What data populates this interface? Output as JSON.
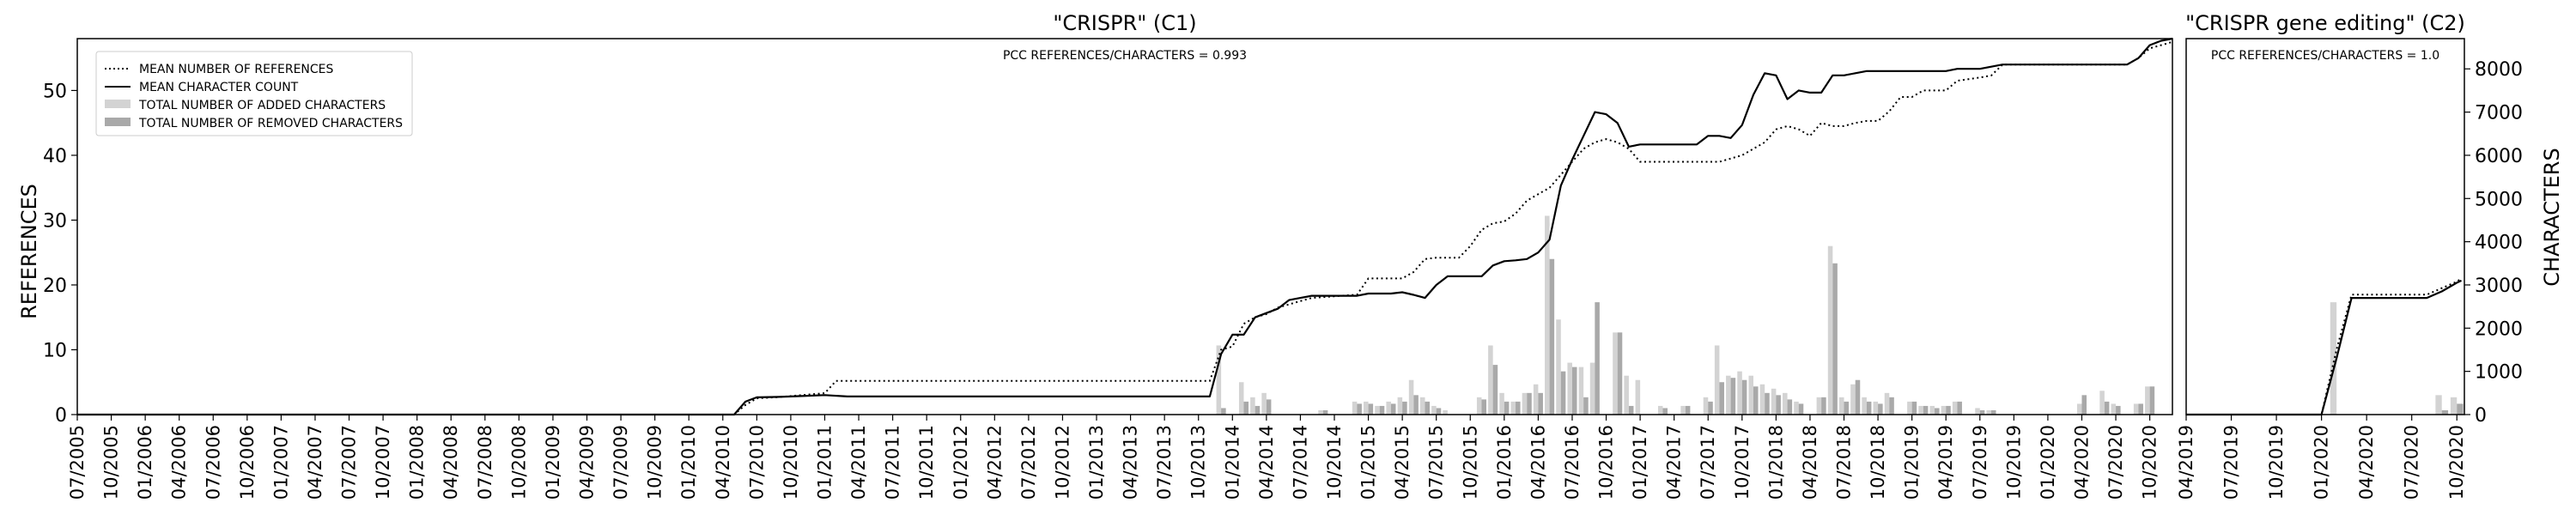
{
  "chart_data": [
    {
      "type": "line",
      "title": "\"CRISPR\" (C1)",
      "annotation": "PCC REFERENCES/CHARACTERS = 0.993",
      "ylabel_left": "REFERENCES",
      "ylabel_right": "",
      "ylim_left": [
        0,
        58
      ],
      "ylim_right": [
        0,
        8700
      ],
      "yticks_left": [
        "0",
        "10",
        "20",
        "30",
        "40",
        "50"
      ],
      "yticks_right": [],
      "xlim": [
        0,
        185
      ],
      "legend_position": "top-left",
      "legend": [
        {
          "label": "MEAN NUMBER OF REFERENCES",
          "style": "dotted"
        },
        {
          "label": "MEAN CHARACTER COUNT",
          "style": "solid"
        },
        {
          "label": "TOTAL NUMBER OF ADDED CHARACTERS",
          "style": "bar-light"
        },
        {
          "label": "TOTAL NUMBER OF REMOVED CHARACTERS",
          "style": "bar-dark"
        }
      ],
      "xtick_labels": [
        "07/2005",
        "10/2005",
        "01/2006",
        "04/2006",
        "07/2006",
        "10/2006",
        "01/2007",
        "04/2007",
        "07/2007",
        "10/2007",
        "01/2008",
        "04/2008",
        "07/2008",
        "10/2008",
        "01/2009",
        "04/2009",
        "07/2009",
        "10/2009",
        "01/2010",
        "04/2010",
        "07/2010",
        "10/2010",
        "01/2011",
        "04/2011",
        "07/2011",
        "10/2011",
        "01/2012",
        "04/2012",
        "07/2012",
        "10/2012",
        "01/2013",
        "04/2013",
        "07/2013",
        "10/2013",
        "01/2014",
        "04/2014",
        "07/2014",
        "10/2014",
        "01/2015",
        "04/2015",
        "07/2015",
        "10/2015",
        "01/2016",
        "04/2016",
        "07/2016",
        "10/2016",
        "01/2017",
        "04/2017",
        "07/2017",
        "10/2017",
        "01/2018",
        "04/2018",
        "07/2018",
        "10/2018",
        "01/2019",
        "04/2019",
        "07/2019",
        "10/2019",
        "01/2020",
        "04/2020",
        "07/2020",
        "10/2020"
      ],
      "xtick_positions": [
        0,
        3,
        6,
        9,
        12,
        15,
        18,
        21,
        24,
        27,
        30,
        33,
        36,
        39,
        42,
        45,
        48,
        51,
        54,
        57,
        60,
        63,
        66,
        69,
        72,
        75,
        78,
        81,
        84,
        87,
        90,
        93,
        96,
        99,
        102,
        105,
        108,
        111,
        114,
        117,
        120,
        123,
        126,
        129,
        132,
        135,
        138,
        141,
        144,
        147,
        150,
        153,
        156,
        159,
        162,
        165,
        168,
        171,
        174,
        177,
        180,
        183
      ],
      "references": [
        [
          0,
          0
        ],
        [
          58,
          0
        ],
        [
          59,
          1.5
        ],
        [
          60,
          2.5
        ],
        [
          62,
          2.7
        ],
        [
          64,
          3
        ],
        [
          66,
          3.3
        ],
        [
          67,
          5.2
        ],
        [
          100,
          5.2
        ],
        [
          101,
          10
        ],
        [
          102,
          10.5
        ],
        [
          103,
          14
        ],
        [
          104,
          15
        ],
        [
          105,
          15.5
        ],
        [
          106,
          16.5
        ],
        [
          107,
          17
        ],
        [
          108,
          17.5
        ],
        [
          109,
          18
        ],
        [
          113,
          18.5
        ],
        [
          114,
          21
        ],
        [
          115,
          21
        ],
        [
          117,
          21
        ],
        [
          118,
          22
        ],
        [
          119,
          24
        ],
        [
          120,
          24.2
        ],
        [
          122,
          24.2
        ],
        [
          123,
          26
        ],
        [
          124,
          28.5
        ],
        [
          125,
          29.5
        ],
        [
          126,
          29.8
        ],
        [
          127,
          31
        ],
        [
          128,
          33
        ],
        [
          129,
          34
        ],
        [
          130,
          35
        ],
        [
          131,
          37
        ],
        [
          132,
          39
        ],
        [
          133,
          41
        ],
        [
          134,
          42
        ],
        [
          135,
          42.5
        ],
        [
          136,
          42
        ],
        [
          137,
          41
        ],
        [
          138,
          39
        ],
        [
          139,
          39
        ],
        [
          145,
          39
        ],
        [
          146,
          39.5
        ],
        [
          147,
          40
        ],
        [
          148,
          41
        ],
        [
          149,
          42
        ],
        [
          150,
          44
        ],
        [
          151,
          44.5
        ],
        [
          152,
          44
        ],
        [
          153,
          43
        ],
        [
          154,
          45
        ],
        [
          155,
          44.5
        ],
        [
          156,
          44.5
        ],
        [
          157,
          45
        ],
        [
          158,
          45.3
        ],
        [
          159,
          45.3
        ],
        [
          160,
          46.8
        ],
        [
          161,
          49
        ],
        [
          162,
          49
        ],
        [
          163,
          50
        ],
        [
          165,
          50
        ],
        [
          166,
          51.5
        ],
        [
          168,
          52
        ],
        [
          169,
          52.3
        ],
        [
          170,
          54
        ],
        [
          180,
          54
        ],
        [
          181,
          54
        ],
        [
          182,
          55
        ],
        [
          183,
          56.5
        ],
        [
          184,
          57
        ],
        [
          185,
          57.5
        ]
      ],
      "characters": [
        [
          0,
          0
        ],
        [
          58,
          0
        ],
        [
          59,
          300
        ],
        [
          60,
          400
        ],
        [
          62,
          410
        ],
        [
          64,
          430
        ],
        [
          66,
          450
        ],
        [
          68,
          420
        ],
        [
          100,
          420
        ],
        [
          101,
          1400
        ],
        [
          102,
          1850
        ],
        [
          103,
          1850
        ],
        [
          104,
          2250
        ],
        [
          105,
          2350
        ],
        [
          106,
          2450
        ],
        [
          107,
          2650
        ],
        [
          108,
          2700
        ],
        [
          109,
          2750
        ],
        [
          113,
          2750
        ],
        [
          114,
          2800
        ],
        [
          116,
          2800
        ],
        [
          117,
          2830
        ],
        [
          118,
          2770
        ],
        [
          119,
          2700
        ],
        [
          120,
          3000
        ],
        [
          121,
          3200
        ],
        [
          122,
          3200
        ],
        [
          123,
          3200
        ],
        [
          124,
          3200
        ],
        [
          125,
          3450
        ],
        [
          126,
          3550
        ],
        [
          127,
          3570
        ],
        [
          128,
          3600
        ],
        [
          129,
          3750
        ],
        [
          130,
          4050
        ],
        [
          131,
          5300
        ],
        [
          132,
          5900
        ],
        [
          133,
          6450
        ],
        [
          134,
          7000
        ],
        [
          135,
          6950
        ],
        [
          136,
          6750
        ],
        [
          137,
          6200
        ],
        [
          138,
          6250
        ],
        [
          143,
          6250
        ],
        [
          144,
          6450
        ],
        [
          145,
          6450
        ],
        [
          146,
          6400
        ],
        [
          147,
          6700
        ],
        [
          148,
          7400
        ],
        [
          149,
          7900
        ],
        [
          150,
          7850
        ],
        [
          151,
          7300
        ],
        [
          152,
          7500
        ],
        [
          153,
          7450
        ],
        [
          154,
          7450
        ],
        [
          155,
          7850
        ],
        [
          156,
          7850
        ],
        [
          157,
          7900
        ],
        [
          158,
          7950
        ],
        [
          159,
          7950
        ],
        [
          165,
          7950
        ],
        [
          166,
          8000
        ],
        [
          168,
          8000
        ],
        [
          169,
          8050
        ],
        [
          170,
          8100
        ],
        [
          180,
          8100
        ],
        [
          181,
          8100
        ],
        [
          182,
          8250
        ],
        [
          183,
          8550
        ],
        [
          184,
          8650
        ],
        [
          185,
          8700
        ]
      ],
      "added": [
        [
          101,
          1600
        ],
        [
          103,
          750
        ],
        [
          104,
          400
        ],
        [
          105,
          500
        ],
        [
          110,
          100
        ],
        [
          113,
          300
        ],
        [
          114,
          300
        ],
        [
          115,
          200
        ],
        [
          116,
          300
        ],
        [
          117,
          400
        ],
        [
          118,
          800
        ],
        [
          119,
          400
        ],
        [
          120,
          200
        ],
        [
          121,
          100
        ],
        [
          124,
          400
        ],
        [
          125,
          1600
        ],
        [
          126,
          500
        ],
        [
          127,
          300
        ],
        [
          128,
          500
        ],
        [
          129,
          700
        ],
        [
          130,
          4600
        ],
        [
          131,
          2200
        ],
        [
          132,
          1200
        ],
        [
          133,
          1100
        ],
        [
          134,
          1200
        ],
        [
          136,
          1900
        ],
        [
          137,
          900
        ],
        [
          138,
          800
        ],
        [
          140,
          200
        ],
        [
          142,
          200
        ],
        [
          144,
          400
        ],
        [
          145,
          1600
        ],
        [
          146,
          900
        ],
        [
          147,
          1000
        ],
        [
          148,
          900
        ],
        [
          149,
          700
        ],
        [
          150,
          600
        ],
        [
          151,
          500
        ],
        [
          152,
          300
        ],
        [
          154,
          400
        ],
        [
          155,
          3900
        ],
        [
          156,
          400
        ],
        [
          157,
          700
        ],
        [
          158,
          400
        ],
        [
          159,
          300
        ],
        [
          160,
          500
        ],
        [
          162,
          300
        ],
        [
          163,
          200
        ],
        [
          164,
          200
        ],
        [
          165,
          200
        ],
        [
          166,
          300
        ],
        [
          168,
          150
        ],
        [
          169,
          100
        ],
        [
          177,
          250
        ],
        [
          179,
          550
        ],
        [
          180,
          250
        ],
        [
          182,
          250
        ],
        [
          183,
          650
        ]
      ],
      "removed": [
        [
          101,
          150
        ],
        [
          103,
          300
        ],
        [
          104,
          200
        ],
        [
          105,
          350
        ],
        [
          110,
          100
        ],
        [
          113,
          250
        ],
        [
          114,
          250
        ],
        [
          115,
          200
        ],
        [
          116,
          250
        ],
        [
          117,
          300
        ],
        [
          118,
          450
        ],
        [
          119,
          300
        ],
        [
          120,
          150
        ],
        [
          124,
          350
        ],
        [
          125,
          1150
        ],
        [
          126,
          300
        ],
        [
          127,
          300
        ],
        [
          128,
          500
        ],
        [
          129,
          500
        ],
        [
          130,
          3600
        ],
        [
          131,
          1000
        ],
        [
          132,
          1100
        ],
        [
          133,
          400
        ],
        [
          134,
          2600
        ],
        [
          136,
          1900
        ],
        [
          137,
          200
        ],
        [
          140,
          150
        ],
        [
          142,
          200
        ],
        [
          144,
          300
        ],
        [
          145,
          750
        ],
        [
          146,
          850
        ],
        [
          147,
          800
        ],
        [
          148,
          650
        ],
        [
          149,
          500
        ],
        [
          150,
          450
        ],
        [
          151,
          350
        ],
        [
          152,
          250
        ],
        [
          154,
          400
        ],
        [
          155,
          3500
        ],
        [
          156,
          300
        ],
        [
          157,
          800
        ],
        [
          158,
          300
        ],
        [
          159,
          250
        ],
        [
          160,
          400
        ],
        [
          162,
          300
        ],
        [
          163,
          200
        ],
        [
          164,
          150
        ],
        [
          165,
          200
        ],
        [
          166,
          300
        ],
        [
          168,
          100
        ],
        [
          169,
          100
        ],
        [
          177,
          450
        ],
        [
          179,
          300
        ],
        [
          180,
          200
        ],
        [
          182,
          250
        ],
        [
          183,
          650
        ]
      ]
    },
    {
      "type": "line",
      "title": "\"CRISPR gene editing\" (C2)",
      "annotation": "PCC REFERENCES/CHARACTERS = 1.0",
      "ylabel_left": "",
      "ylabel_right": "CHARACTERS",
      "ylim_left": [
        0,
        58
      ],
      "ylim_right": [
        0,
        8700
      ],
      "yticks_left": [],
      "yticks_right": [
        "0",
        "1000",
        "2000",
        "3000",
        "4000",
        "5000",
        "6000",
        "7000",
        "8000"
      ],
      "xlim": [
        0,
        18.5
      ],
      "xtick_labels": [
        "04/2019",
        "07/2019",
        "10/2019",
        "01/2020",
        "04/2020",
        "07/2020",
        "10/2020"
      ],
      "xtick_positions": [
        0,
        3,
        6,
        9,
        12,
        15,
        18
      ],
      "references": [
        [
          0,
          0
        ],
        [
          9,
          0
        ],
        [
          10,
          10
        ],
        [
          11,
          18.5
        ],
        [
          12,
          18.5
        ],
        [
          16,
          18.5
        ],
        [
          17,
          19.5
        ],
        [
          18,
          20.5
        ],
        [
          18.3,
          21
        ]
      ],
      "characters": [
        [
          0,
          0
        ],
        [
          9,
          0
        ],
        [
          10,
          1300
        ],
        [
          11,
          2700
        ],
        [
          12,
          2700
        ],
        [
          16,
          2700
        ],
        [
          17,
          2850
        ],
        [
          18,
          3050
        ],
        [
          18.3,
          3100
        ]
      ],
      "added": [
        [
          10,
          2600
        ],
        [
          17,
          450
        ],
        [
          18,
          400
        ]
      ],
      "removed": [
        [
          17,
          100
        ],
        [
          18,
          250
        ]
      ]
    }
  ]
}
